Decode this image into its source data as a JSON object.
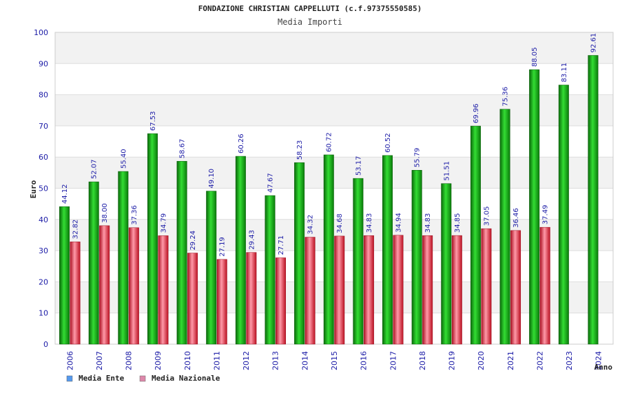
{
  "chart_data": {
    "type": "bar",
    "title": "FONDAZIONE CHRISTIAN CAPPELLUTI (c.f.97375550585)",
    "subtitle": "Media Importi",
    "ylabel": "Euro",
    "xlabel": "Anno",
    "ylim": [
      0,
      100
    ],
    "yticks": [
      0,
      10,
      20,
      30,
      40,
      50,
      60,
      70,
      80,
      90,
      100
    ],
    "grid": true,
    "legend_position": "bottom-left",
    "categories": [
      "2006",
      "2007",
      "2008",
      "2009",
      "2010",
      "2011",
      "2012",
      "2013",
      "2014",
      "2015",
      "2016",
      "2017",
      "2018",
      "2019",
      "2020",
      "2021",
      "2022",
      "2023",
      "2024"
    ],
    "series": [
      {
        "name": "Media Ente",
        "color": "#22aa22",
        "legend_color": "#5599ee",
        "values": [
          44.12,
          52.07,
          55.4,
          67.53,
          58.67,
          49.1,
          60.26,
          47.67,
          58.23,
          60.72,
          53.17,
          60.52,
          55.79,
          51.51,
          69.96,
          75.36,
          88.05,
          83.11,
          92.61
        ]
      },
      {
        "name": "Media Nazionale",
        "color": "#dd3344",
        "legend_color": "#dd88aa",
        "values": [
          32.82,
          38.0,
          37.36,
          34.79,
          29.24,
          27.19,
          29.43,
          27.71,
          34.32,
          34.68,
          34.83,
          34.94,
          34.83,
          34.85,
          37.05,
          36.46,
          37.49,
          null,
          null
        ]
      }
    ]
  }
}
